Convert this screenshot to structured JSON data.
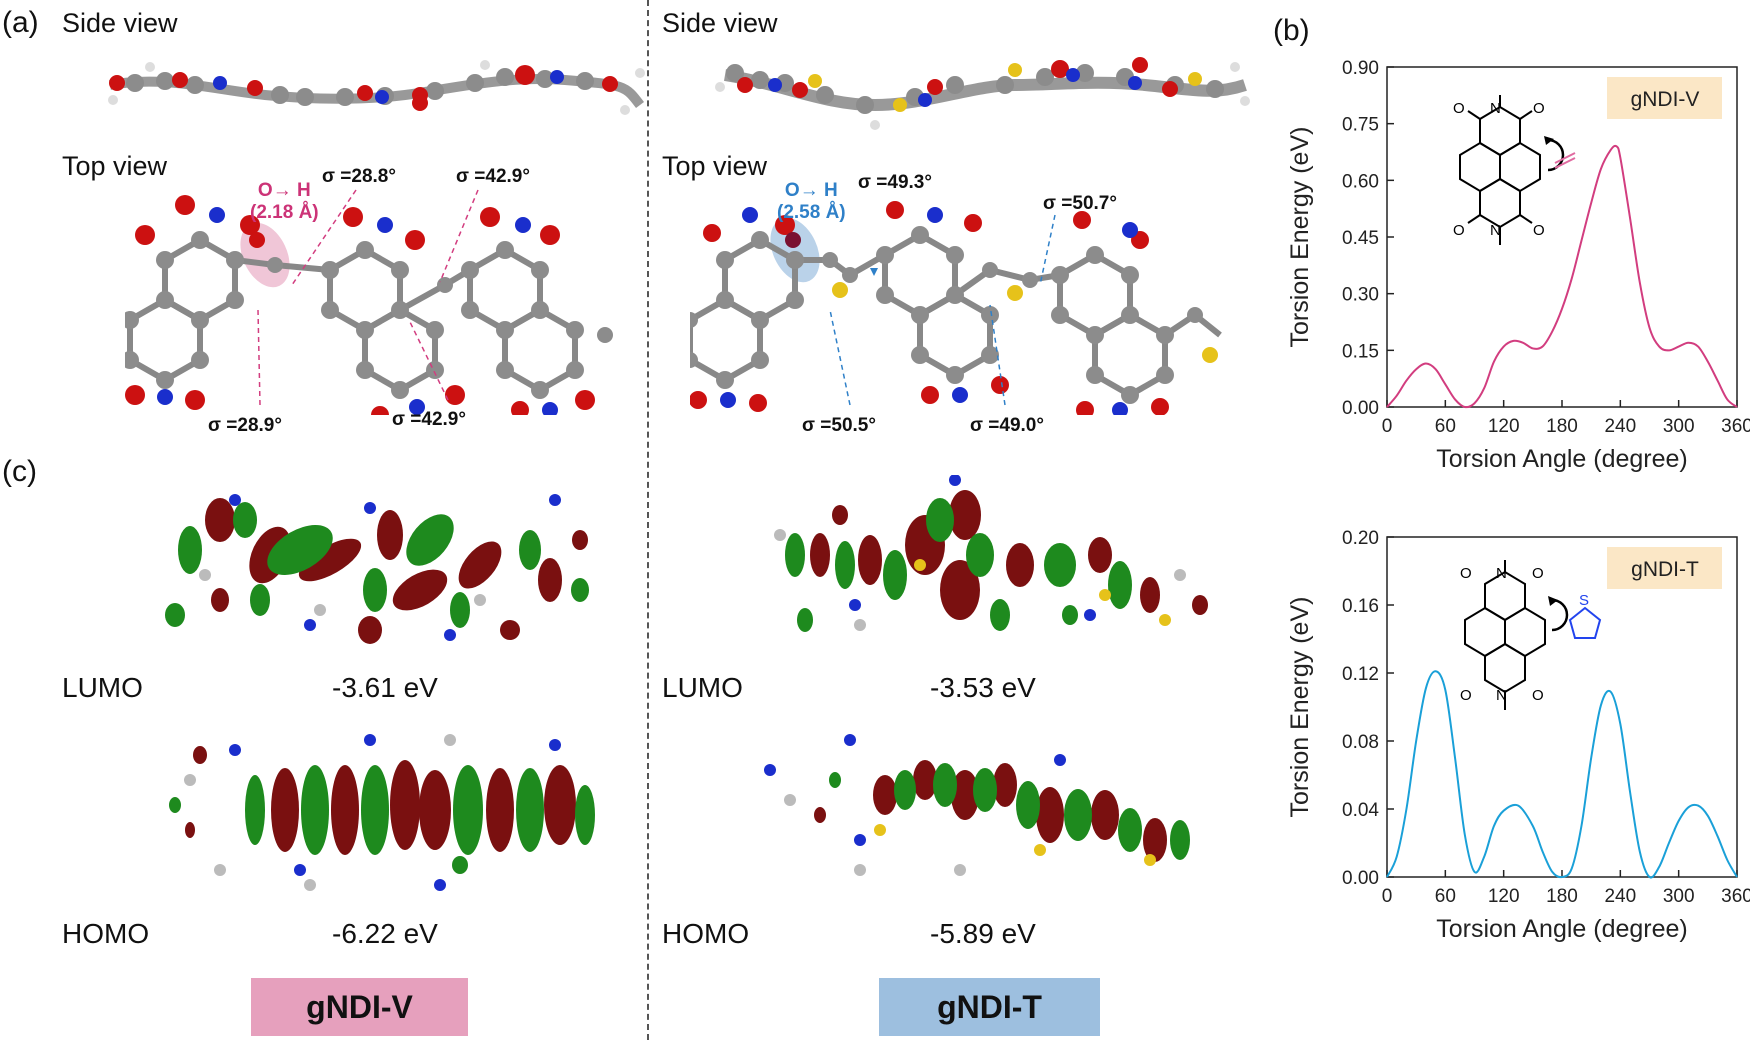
{
  "panel_a": {
    "letter": "(a)",
    "side_view_label": "Side view",
    "top_view_label": "Top view",
    "vinyl": {
      "hbond": "O→ H",
      "hbond_dist": "(2.18 Å)",
      "sigmas": [
        "σ =28.8°",
        "σ =42.9°",
        "σ =28.9°",
        "σ =42.9°"
      ]
    },
    "thienyl": {
      "hbond": "O→ H",
      "hbond_dist": "(2.58 Å)",
      "sigmas": [
        "σ =49.3°",
        "σ =50.7°",
        "σ =50.5°",
        "σ =49.0°"
      ]
    }
  },
  "panel_c": {
    "letter": "(c)",
    "vinyl": {
      "lumo_label": "LUMO",
      "lumo_energy": "-3.61 eV",
      "homo_label": "HOMO",
      "homo_energy": "-6.22 eV"
    },
    "thienyl": {
      "lumo_label": "LUMO",
      "lumo_energy": "-3.53 eV",
      "homo_label": "HOMO",
      "homo_energy": "-5.89 eV"
    }
  },
  "legend": {
    "vinyl": {
      "label": "gNDI-V",
      "color": "#e6a0bd"
    },
    "thienyl": {
      "label": "gNDI-T",
      "color": "#9dbfdf"
    }
  },
  "panel_b": {
    "letter": "(b)"
  },
  "colors": {
    "oxygen": "#cc1111",
    "nitrogen": "#1a2ecc",
    "sulfur": "#e6c21a",
    "carbon": "#8c8c8c",
    "orbital_red": "#7a1010",
    "orbital_green": "#1e8a1e",
    "vinyl_line": "#d23d7f",
    "thienyl_line": "#1aa0d8",
    "pink_text": "#cc3377",
    "blue_text": "#2f80c8"
  },
  "chart_data": [
    {
      "type": "line",
      "legend_label": "gNDI-V",
      "xlabel": "Torsion Angle (degree)",
      "ylabel": "Torsion Energy (eV)",
      "xlim": [
        0,
        360
      ],
      "ylim": [
        0,
        0.9
      ],
      "xticks": [
        0,
        60,
        120,
        180,
        240,
        300,
        360
      ],
      "yticks": [
        "0.00",
        "0.15",
        "0.30",
        "0.45",
        "0.60",
        "0.75",
        "0.90"
      ],
      "x": [
        0,
        10,
        20,
        30,
        40,
        50,
        60,
        70,
        80,
        90,
        100,
        110,
        120,
        130,
        140,
        150,
        160,
        170,
        180,
        190,
        200,
        210,
        220,
        230,
        236,
        240,
        250,
        260,
        270,
        280,
        290,
        300,
        310,
        320,
        330,
        340,
        350,
        360
      ],
      "y": [
        0.0,
        0.03,
        0.07,
        0.1,
        0.115,
        0.1,
        0.06,
        0.02,
        0.0,
        0.01,
        0.05,
        0.12,
        0.16,
        0.175,
        0.17,
        0.155,
        0.16,
        0.2,
        0.26,
        0.34,
        0.44,
        0.54,
        0.63,
        0.68,
        0.69,
        0.66,
        0.5,
        0.33,
        0.21,
        0.16,
        0.15,
        0.16,
        0.17,
        0.16,
        0.12,
        0.07,
        0.02,
        0.0
      ]
    },
    {
      "type": "line",
      "legend_label": "gNDI-T",
      "xlabel": "Torsion Angle (degree)",
      "ylabel": "Torsion Energy (eV)",
      "xlim": [
        0,
        360
      ],
      "ylim": [
        0,
        0.2
      ],
      "xticks": [
        0,
        60,
        120,
        180,
        240,
        300,
        360
      ],
      "yticks": [
        "0.00",
        "0.04",
        "0.08",
        "0.12",
        "0.16",
        "0.20"
      ],
      "x": [
        0,
        10,
        20,
        30,
        40,
        50,
        60,
        70,
        80,
        90,
        100,
        110,
        120,
        135,
        150,
        160,
        170,
        180,
        190,
        200,
        210,
        220,
        230,
        240,
        250,
        260,
        270,
        280,
        290,
        300,
        310,
        320,
        330,
        340,
        350,
        360
      ],
      "y": [
        0.0,
        0.012,
        0.04,
        0.08,
        0.111,
        0.121,
        0.11,
        0.07,
        0.025,
        0.003,
        0.012,
        0.03,
        0.039,
        0.042,
        0.03,
        0.015,
        0.003,
        0.0,
        0.005,
        0.03,
        0.07,
        0.101,
        0.109,
        0.09,
        0.05,
        0.015,
        0.0,
        0.006,
        0.02,
        0.033,
        0.041,
        0.042,
        0.036,
        0.024,
        0.01,
        0.0
      ]
    }
  ]
}
